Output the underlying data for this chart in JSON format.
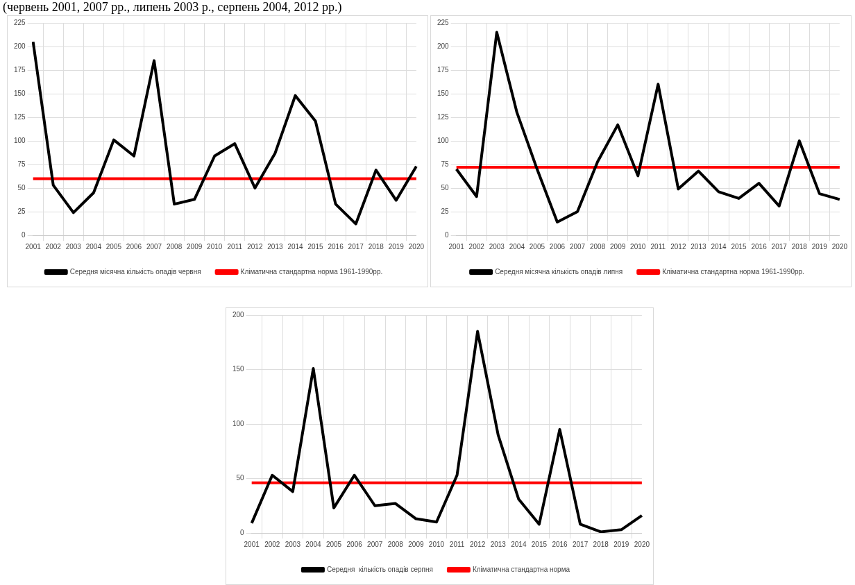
{
  "chart_data": [
    {
      "type": "line",
      "annotations": [
        "(червень 2001, 2007 рр., липень 2003 р., серпень 2004, 2012 рр.)"
      ],
      "categories": [
        "2001",
        "2002",
        "2003",
        "2004",
        "2005",
        "2006",
        "2007",
        "2008",
        "2009",
        "2010",
        "2011",
        "2012",
        "2013",
        "2014",
        "2015",
        "2016",
        "2017",
        "2018",
        "2019",
        "2020"
      ],
      "series": [
        {
          "name": "Середня місячна кількість опадів червня",
          "color": "#000000",
          "values": [
            205,
            53,
            24,
            45,
            101,
            84,
            185,
            33,
            38,
            84,
            97,
            50,
            87,
            148,
            121,
            33,
            12,
            69,
            37,
            73
          ]
        },
        {
          "name": "Кліматична стандартна норма 1961-1990рр.",
          "color": "#ff0000",
          "values": [
            60,
            60,
            60,
            60,
            60,
            60,
            60,
            60,
            60,
            60,
            60,
            60,
            60,
            60,
            60,
            60,
            60,
            60,
            60,
            60
          ]
        }
      ],
      "ylim": [
        0,
        225
      ],
      "yticks": [
        0,
        25,
        50,
        75,
        100,
        125,
        150,
        175,
        200,
        225
      ],
      "grid": true,
      "legend": "bottom",
      "marker": "none"
    },
    {
      "type": "line",
      "categories": [
        "2001",
        "2002",
        "2003",
        "2004",
        "2005",
        "2006",
        "2007",
        "2008",
        "2009",
        "2010",
        "2011",
        "2012",
        "2013",
        "2014",
        "2015",
        "2016",
        "2017",
        "2018",
        "2019",
        "2020"
      ],
      "series": [
        {
          "name": "Середня місячна кількість опадів липня",
          "color": "#000000",
          "values": [
            70,
            41,
            215,
            130,
            70,
            14,
            25,
            78,
            117,
            63,
            160,
            49,
            68,
            46,
            39,
            55,
            31,
            100,
            44,
            38
          ]
        },
        {
          "name": "Кліматична стандартна норма 1961-1990рр.",
          "color": "#ff0000",
          "values": [
            72,
            72,
            72,
            72,
            72,
            72,
            72,
            72,
            72,
            72,
            72,
            72,
            72,
            72,
            72,
            72,
            72,
            72,
            72,
            72
          ]
        }
      ],
      "ylim": [
        0,
        225
      ],
      "yticks": [
        0,
        25,
        50,
        75,
        100,
        125,
        150,
        175,
        200,
        225
      ],
      "grid": true,
      "legend": "bottom",
      "marker": "none"
    },
    {
      "type": "line",
      "categories": [
        "2001",
        "2002",
        "2003",
        "2004",
        "2005",
        "2006",
        "2007",
        "2008",
        "2009",
        "2010",
        "2011",
        "2012",
        "2013",
        "2014",
        "2015",
        "2016",
        "2017",
        "2018",
        "2019",
        "2020"
      ],
      "series": [
        {
          "name": "Середня  кількість опадів серпня",
          "color": "#000000",
          "values": [
            9,
            53,
            38,
            151,
            23,
            53,
            25,
            27,
            13,
            10,
            53,
            185,
            90,
            31,
            8,
            95,
            8,
            1,
            3,
            16
          ]
        },
        {
          "name": "Кліматична стандартна норма",
          "color": "#ff0000",
          "values": [
            46,
            46,
            46,
            46,
            46,
            46,
            46,
            46,
            46,
            46,
            46,
            46,
            46,
            46,
            46,
            46,
            46,
            46,
            46,
            46
          ]
        }
      ],
      "ylim": [
        0,
        200
      ],
      "yticks": [
        0,
        50,
        100,
        150,
        200
      ],
      "grid": true,
      "legend": "bottom",
      "marker": "none"
    }
  ]
}
